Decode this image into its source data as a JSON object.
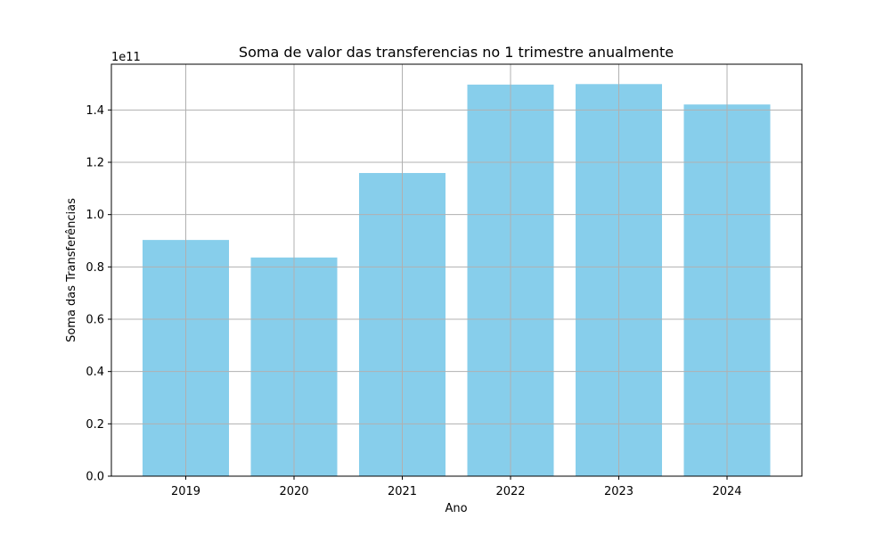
{
  "chart_data": {
    "type": "bar",
    "title": "Soma de valor das transferencias no 1 trimestre anualmente",
    "xlabel": "Ano",
    "ylabel": "Soma das Transferências",
    "y_offset_label": "1e11",
    "categories": [
      "2019",
      "2020",
      "2021",
      "2022",
      "2023",
      "2024"
    ],
    "values": [
      0.903,
      0.836,
      1.159,
      1.497,
      1.499,
      1.421
    ],
    "ylim": [
      0,
      1.575
    ],
    "yticks": [
      0.0,
      0.2,
      0.4,
      0.6,
      0.8,
      1.0,
      1.2,
      1.4
    ],
    "ytick_labels": [
      "0.0",
      "0.2",
      "0.4",
      "0.6",
      "0.8",
      "1.0",
      "1.2",
      "1.4"
    ],
    "grid": true,
    "colors": {
      "bar": "#87ceeb",
      "grid": "#b0b0b0",
      "axis": "#000000"
    }
  }
}
